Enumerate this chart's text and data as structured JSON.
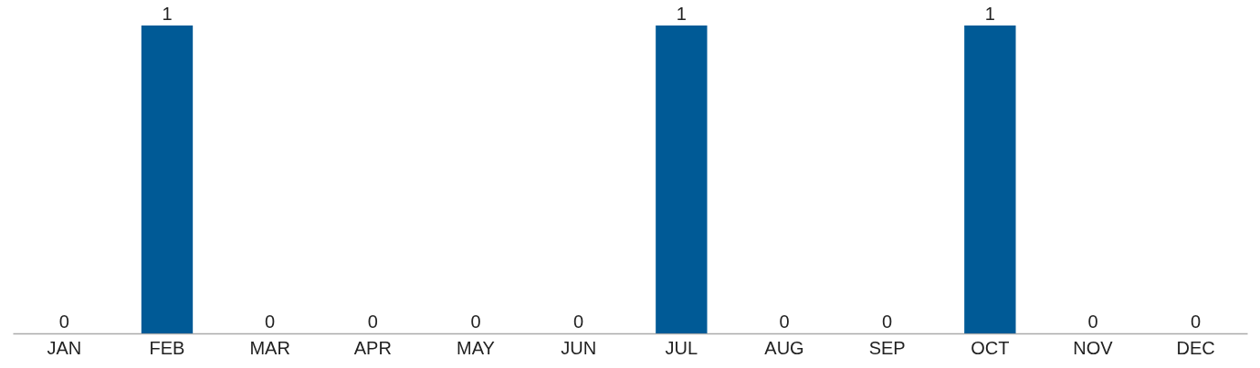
{
  "chart_data": {
    "type": "bar",
    "categories": [
      "JAN",
      "FEB",
      "MAR",
      "APR",
      "MAY",
      "JUN",
      "JUL",
      "AUG",
      "SEP",
      "OCT",
      "NOV",
      "DEC"
    ],
    "values": [
      0,
      1,
      0,
      0,
      0,
      0,
      1,
      0,
      0,
      1,
      0,
      0
    ],
    "color": "#005a96",
    "data_labels": true,
    "grid": false
  }
}
